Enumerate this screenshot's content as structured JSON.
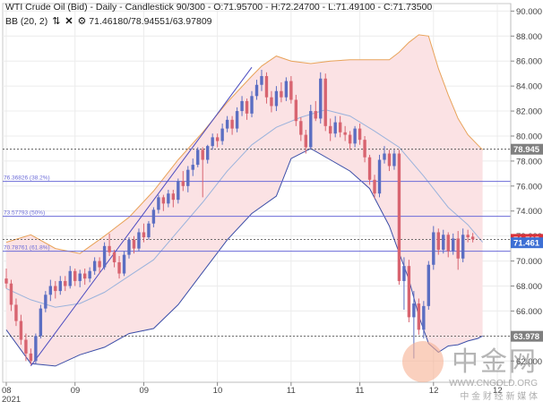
{
  "header": {
    "line1": "WTI Crude Oil (Bid) - Daily - Candlestick",
    "ohlc": "90/300 - O:71.95700 - H:72.24700 - L:71.49100 - C:71.73500",
    "line2_label": "BB (20, 2)",
    "bb_values": "71.46180/78.94551/63.97809",
    "icons": [
      "chevrons-icon",
      "close-icon",
      "gear-icon"
    ]
  },
  "watermark": {
    "brand": "中金网",
    "url": "WWW.CNGOLD.ORG",
    "tagline": "中 金 财 经 新 媒 体"
  },
  "colors": {
    "up": "#5b6ec2",
    "down": "#d86470",
    "bb_band_fill": "#fbe2e4",
    "bb_upper": "#e8a35a",
    "bb_lower": "#3b4ea8",
    "bb_mid": "#9bb3dc",
    "fib_line": "#6b6bd8",
    "trendline": "#4b4bc0",
    "label_gray": "#7f7f7f",
    "label_red": "#d9323a",
    "label_blue": "#3d6fd4"
  },
  "chart_data": {
    "type": "candlestick",
    "y_ticks": [
      62,
      64,
      66,
      68,
      70,
      72,
      74,
      76,
      78,
      80,
      82,
      84,
      86,
      88,
      90
    ],
    "y_tick_labels": [
      "62.000",
      "64.000",
      "66.000",
      "68.000",
      "70.000",
      "72.000",
      "74.000",
      "76.000",
      "78.000",
      "80.000",
      "82.000",
      "84.000",
      "86.000",
      "88.000",
      "90.000"
    ],
    "ylim": [
      60.3,
      90.6
    ],
    "x_labels": [
      {
        "text": "08",
        "i": 0
      },
      {
        "text": "09",
        "i": 14
      },
      {
        "text": "09",
        "i": 28
      },
      {
        "text": "10",
        "i": 43
      },
      {
        "text": "11",
        "i": 58
      },
      {
        "text": "11",
        "i": 72
      },
      {
        "text": "12",
        "i": 87
      },
      {
        "text": "12",
        "i": 100
      }
    ],
    "x_sub_label": "2021",
    "n_slots": 102,
    "candles": [
      [
        68.6,
        69.4,
        67.8,
        68.2
      ],
      [
        68.2,
        68.5,
        66.0,
        66.5
      ],
      [
        66.5,
        67.0,
        64.8,
        65.2
      ],
      [
        65.2,
        65.7,
        63.3,
        63.7
      ],
      [
        63.7,
        64.2,
        62.0,
        62.6
      ],
      [
        62.6,
        63.0,
        61.7,
        62.0
      ],
      [
        62.0,
        64.2,
        61.8,
        64.0
      ],
      [
        64.0,
        66.5,
        63.8,
        66.2
      ],
      [
        66.2,
        67.6,
        65.9,
        67.3
      ],
      [
        67.3,
        68.5,
        66.8,
        68.0
      ],
      [
        68.0,
        68.4,
        67.0,
        67.6
      ],
      [
        67.6,
        68.8,
        67.3,
        68.4
      ],
      [
        68.4,
        68.8,
        67.6,
        68.0
      ],
      [
        68.0,
        69.6,
        67.8,
        69.2
      ],
      [
        69.2,
        69.4,
        68.0,
        68.4
      ],
      [
        68.4,
        69.3,
        67.9,
        69.0
      ],
      [
        69.0,
        69.4,
        68.1,
        68.6
      ],
      [
        68.6,
        69.5,
        68.3,
        69.2
      ],
      [
        69.2,
        70.3,
        68.9,
        70.0
      ],
      [
        70.0,
        70.3,
        69.0,
        69.5
      ],
      [
        69.5,
        71.5,
        69.3,
        71.2
      ],
      [
        71.2,
        72.2,
        70.4,
        70.7
      ],
      [
        70.7,
        70.9,
        69.5,
        69.9
      ],
      [
        69.9,
        70.4,
        68.6,
        69.0
      ],
      [
        69.0,
        70.8,
        68.8,
        70.5
      ],
      [
        70.5,
        71.9,
        70.2,
        71.7
      ],
      [
        71.7,
        72.0,
        70.6,
        71.0
      ],
      [
        71.0,
        72.6,
        70.8,
        72.3
      ],
      [
        72.3,
        73.0,
        71.5,
        71.9
      ],
      [
        71.9,
        73.2,
        71.7,
        73.0
      ],
      [
        73.0,
        74.3,
        72.7,
        74.1
      ],
      [
        74.1,
        75.3,
        73.8,
        75.1
      ],
      [
        75.1,
        75.3,
        74.0,
        74.6
      ],
      [
        74.6,
        75.7,
        74.3,
        75.4
      ],
      [
        75.4,
        75.7,
        74.3,
        74.9
      ],
      [
        74.9,
        76.6,
        74.6,
        76.4
      ],
      [
        76.4,
        77.2,
        75.6,
        76.0
      ],
      [
        76.0,
        77.6,
        75.5,
        77.3
      ],
      [
        77.3,
        78.2,
        76.8,
        77.7
      ],
      [
        77.7,
        79.1,
        77.5,
        78.9
      ],
      [
        78.9,
        79.1,
        75.1,
        78.1
      ],
      [
        78.1,
        79.3,
        77.8,
        79.2
      ],
      [
        79.2,
        80.2,
        78.9,
        79.9
      ],
      [
        79.9,
        80.2,
        79.1,
        79.6
      ],
      [
        79.6,
        81.0,
        79.3,
        80.6
      ],
      [
        80.6,
        81.6,
        80.3,
        81.3
      ],
      [
        81.3,
        81.6,
        80.1,
        80.6
      ],
      [
        80.6,
        82.3,
        80.3,
        82.0
      ],
      [
        82.0,
        83.2,
        81.6,
        82.8
      ],
      [
        82.8,
        83.0,
        81.3,
        81.8
      ],
      [
        81.8,
        83.6,
        81.5,
        83.2
      ],
      [
        83.2,
        84.5,
        82.9,
        84.1
      ],
      [
        84.1,
        85.3,
        83.6,
        84.8
      ],
      [
        84.8,
        85.1,
        82.6,
        83.1
      ],
      [
        83.1,
        83.6,
        81.9,
        82.4
      ],
      [
        82.4,
        84.0,
        82.0,
        83.6
      ],
      [
        83.6,
        84.3,
        82.7,
        83.1
      ],
      [
        83.1,
        84.7,
        82.8,
        84.4
      ],
      [
        84.4,
        84.8,
        82.6,
        82.9
      ],
      [
        82.9,
        83.3,
        80.8,
        81.2
      ],
      [
        81.2,
        81.5,
        79.6,
        80.1
      ],
      [
        80.1,
        80.5,
        78.6,
        79.1
      ],
      [
        79.1,
        82.5,
        78.9,
        82.0
      ],
      [
        82.0,
        82.8,
        81.2,
        81.4
      ],
      [
        81.4,
        85.1,
        81.0,
        84.6
      ],
      [
        84.6,
        85.0,
        80.4,
        80.8
      ],
      [
        80.8,
        81.4,
        79.6,
        80.2
      ],
      [
        80.2,
        81.6,
        79.9,
        81.1
      ],
      [
        81.1,
        81.6,
        79.9,
        80.3
      ],
      [
        80.3,
        80.8,
        79.6,
        80.1
      ],
      [
        80.1,
        80.4,
        78.9,
        79.4
      ],
      [
        79.4,
        80.8,
        79.1,
        80.6
      ],
      [
        80.6,
        81.0,
        79.3,
        79.7
      ],
      [
        79.7,
        80.0,
        77.9,
        78.3
      ],
      [
        78.3,
        78.5,
        76.1,
        76.5
      ],
      [
        76.5,
        76.9,
        75.0,
        75.4
      ],
      [
        75.4,
        78.5,
        75.1,
        78.1
      ],
      [
        78.1,
        79.2,
        77.8,
        78.6
      ],
      [
        78.6,
        78.9,
        77.2,
        77.6
      ],
      [
        77.6,
        78.9,
        77.3,
        78.6
      ],
      [
        78.6,
        78.9,
        68.1,
        68.4
      ],
      [
        68.4,
        70.3,
        66.1,
        69.6
      ],
      [
        69.6,
        70.1,
        65.1,
        65.5
      ],
      [
        65.5,
        67.6,
        62.2,
        66.6
      ],
      [
        66.6,
        67.0,
        64.1,
        64.5
      ],
      [
        64.5,
        66.8,
        63.8,
        66.4
      ],
      [
        66.4,
        70.0,
        66.1,
        69.7
      ],
      [
        69.7,
        72.8,
        69.3,
        72.3
      ],
      [
        72.3,
        72.6,
        70.5,
        70.9
      ],
      [
        70.9,
        72.5,
        70.6,
        72.1
      ],
      [
        72.1,
        72.3,
        70.3,
        70.8
      ],
      [
        70.8,
        72.2,
        70.5,
        71.8
      ],
      [
        71.8,
        72.4,
        69.3,
        70.2
      ],
      [
        70.2,
        72.6,
        69.9,
        72.1
      ],
      [
        72.1,
        72.5,
        71.5,
        71.9
      ],
      [
        71.95,
        72.247,
        71.491,
        71.735
      ]
    ],
    "bb_upper": [
      [
        0,
        71.5
      ],
      [
        5,
        72.1
      ],
      [
        10,
        71.0
      ],
      [
        15,
        70.6
      ],
      [
        20,
        72.0
      ],
      [
        25,
        73.5
      ],
      [
        30,
        75.6
      ],
      [
        35,
        78.1
      ],
      [
        40,
        80.3
      ],
      [
        45,
        82.7
      ],
      [
        50,
        84.8
      ],
      [
        52,
        85.6
      ],
      [
        55,
        86.4
      ],
      [
        58,
        86.0
      ],
      [
        62,
        85.8
      ],
      [
        66,
        86.0
      ],
      [
        70,
        86.1
      ],
      [
        74,
        86.1
      ],
      [
        78,
        86.1
      ],
      [
        80,
        86.7
      ],
      [
        82,
        87.5
      ],
      [
        84,
        88.1
      ],
      [
        86,
        88.0
      ],
      [
        88,
        85.4
      ],
      [
        90,
        83.3
      ],
      [
        92,
        81.4
      ],
      [
        94,
        80.1
      ],
      [
        96,
        79.3
      ],
      [
        97,
        78.9
      ]
    ],
    "bb_mid": [
      [
        0,
        67.8
      ],
      [
        5,
        66.9
      ],
      [
        10,
        66.3
      ],
      [
        15,
        66.6
      ],
      [
        20,
        67.5
      ],
      [
        25,
        68.8
      ],
      [
        30,
        70.1
      ],
      [
        35,
        72.4
      ],
      [
        40,
        74.7
      ],
      [
        45,
        77.2
      ],
      [
        50,
        79.3
      ],
      [
        55,
        80.7
      ],
      [
        60,
        81.5
      ],
      [
        65,
        82.1
      ],
      [
        70,
        81.6
      ],
      [
        75,
        80.4
      ],
      [
        80,
        79.1
      ],
      [
        85,
        76.8
      ],
      [
        90,
        74.3
      ],
      [
        94,
        72.9
      ],
      [
        97,
        71.5
      ]
    ],
    "bb_lower": [
      [
        0,
        64.5
      ],
      [
        5,
        61.8
      ],
      [
        10,
        61.6
      ],
      [
        15,
        62.5
      ],
      [
        20,
        63.1
      ],
      [
        25,
        64.2
      ],
      [
        30,
        64.6
      ],
      [
        35,
        66.5
      ],
      [
        40,
        69.1
      ],
      [
        45,
        71.7
      ],
      [
        50,
        73.8
      ],
      [
        55,
        75.2
      ],
      [
        58,
        78.2
      ],
      [
        62,
        79.0
      ],
      [
        66,
        78.1
      ],
      [
        70,
        77.2
      ],
      [
        74,
        75.8
      ],
      [
        78,
        72.8
      ],
      [
        82,
        68.5
      ],
      [
        84,
        65.6
      ],
      [
        86,
        63.4
      ],
      [
        88,
        62.7
      ],
      [
        90,
        63.2
      ],
      [
        92,
        63.3
      ],
      [
        94,
        63.6
      ],
      [
        96,
        63.8
      ],
      [
        97,
        64.0
      ]
    ],
    "trendline": {
      "x1": 5,
      "y1": 61.6,
      "x2": 50,
      "y2": 85.5
    },
    "fib_levels": [
      {
        "label": "76.36826 (38.2%)",
        "value": 76.36826
      },
      {
        "label": "73.57793 (50%)",
        "value": 73.57793
      },
      {
        "label": "70.78761 (61.8%)",
        "value": 70.78761
      }
    ],
    "price_tags": [
      {
        "text": "78.945",
        "value": 78.945,
        "style": "gray",
        "dotted": true
      },
      {
        "text": "71.735",
        "value": 71.735,
        "style": "red",
        "dotted": true
      },
      {
        "text": "71.461",
        "value": 71.461,
        "style": "blue",
        "dotted": false
      },
      {
        "text": "63.978",
        "value": 63.978,
        "style": "gray",
        "dotted": true
      }
    ]
  }
}
